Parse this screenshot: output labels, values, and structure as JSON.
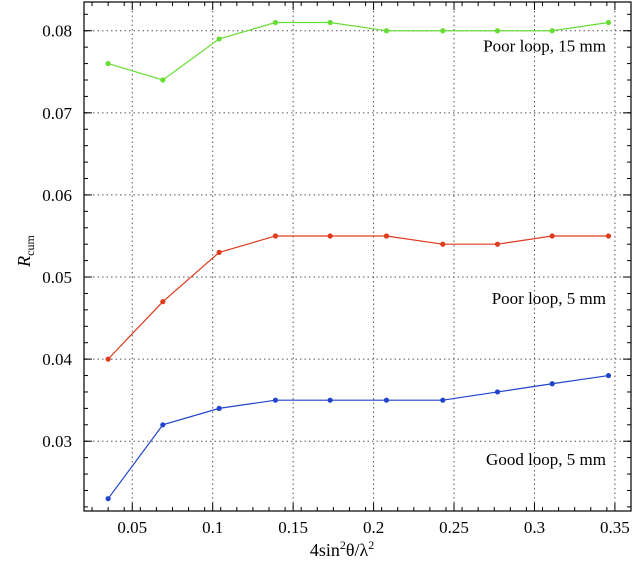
{
  "chart_data": {
    "type": "line",
    "xlabel": {
      "prefix": "4sin",
      "sup1": "2",
      "mid": "θ/λ",
      "sup2": "2"
    },
    "ylabel": {
      "main": "R",
      "sub": "cum"
    },
    "xlim": [
      0.02,
      0.36
    ],
    "ylim": [
      0.0215,
      0.0835
    ],
    "xticks": [
      0.05,
      0.1,
      0.15,
      0.2,
      0.25,
      0.3,
      0.35
    ],
    "xtick_labels": [
      "0.05",
      "0.1",
      "0.15",
      "0.2",
      "0.25",
      "0.3",
      "0.35"
    ],
    "yticks": [
      0.03,
      0.04,
      0.05,
      0.06,
      0.07,
      0.08
    ],
    "ytick_labels": [
      "0.03",
      "0.04",
      "0.05",
      "0.06",
      "0.07",
      "0.08"
    ],
    "grid": true,
    "x": [
      0.035,
      0.069,
      0.104,
      0.139,
      0.173,
      0.208,
      0.243,
      0.277,
      0.311,
      0.346
    ],
    "series": [
      {
        "name": "Poor loop, 15 mm",
        "color": "#66dd33",
        "values": [
          0.076,
          0.074,
          0.079,
          0.081,
          0.081,
          0.08,
          0.08,
          0.08,
          0.08,
          0.081
        ]
      },
      {
        "name": "Poor loop, 5 mm",
        "color": "#e03a1e",
        "values": [
          0.04,
          0.047,
          0.053,
          0.055,
          0.055,
          0.055,
          0.054,
          0.054,
          0.055,
          0.055
        ]
      },
      {
        "name": "Good loop, 5 mm",
        "color": "#2244cc",
        "values": [
          0.023,
          0.032,
          0.034,
          0.035,
          0.035,
          0.035,
          0.035,
          0.036,
          0.037,
          0.038
        ]
      }
    ]
  }
}
